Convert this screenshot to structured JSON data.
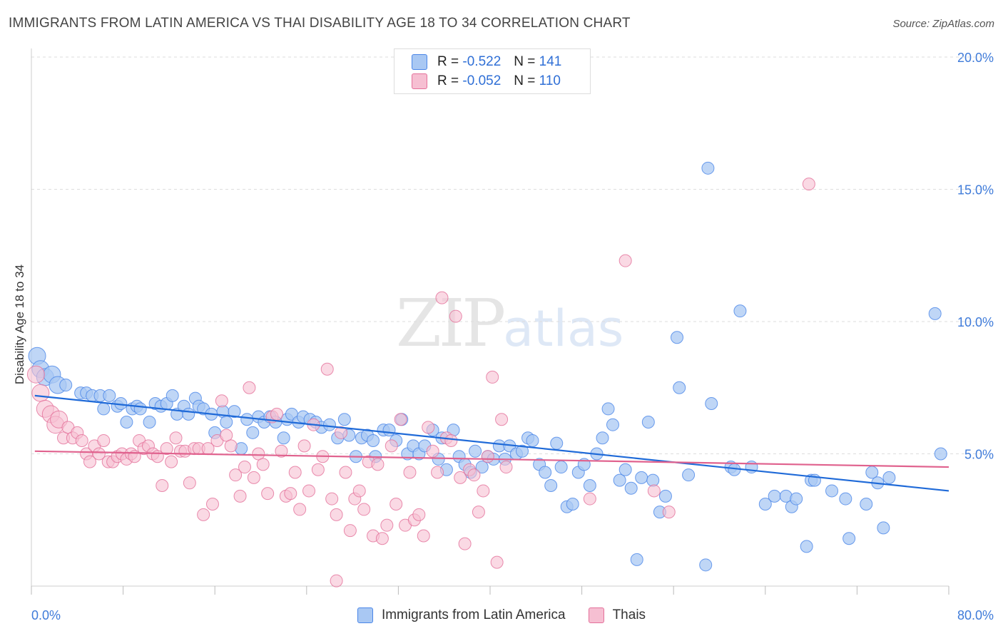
{
  "title": "IMMIGRANTS FROM LATIN AMERICA VS THAI DISABILITY AGE 18 TO 34 CORRELATION CHART",
  "source": "Source: ZipAtlas.com",
  "watermark": {
    "zip": "ZIP",
    "atlas": "atlas"
  },
  "legend": {
    "rows": [
      {
        "r_label": "R =",
        "r_value": "-0.522",
        "n_label": "N =",
        "n_value": "141"
      },
      {
        "r_label": "R =",
        "r_value": "-0.052",
        "n_label": "N =",
        "n_value": "110"
      }
    ]
  },
  "chart_data": {
    "type": "scatter",
    "title": "IMMIGRANTS FROM LATIN AMERICA VS THAI DISABILITY AGE 18 TO 34 CORRELATION CHART",
    "xlabel": "",
    "ylabel": "Disability Age 18 to 34",
    "xlim": [
      0,
      80
    ],
    "ylim": [
      0,
      20
    ],
    "x_tick_labels": [
      "0.0%",
      "80.0%"
    ],
    "y_tick_labels": [
      "5.0%",
      "10.0%",
      "15.0%",
      "20.0%"
    ],
    "y_ticks": [
      5,
      10,
      15,
      20
    ],
    "grid": true,
    "legend_position": "top-center",
    "colors": {
      "blue": "#4a86e8",
      "blue_fill": "#a9c8f3",
      "pink": "#e4709a",
      "pink_fill": "#f6bfd2"
    },
    "series": [
      {
        "name": "Immigrants from Latin America",
        "color": "#4a86e8",
        "trend": {
          "x": [
            0.3,
            80
          ],
          "y": [
            7.2,
            3.6
          ]
        },
        "points": [
          [
            0.5,
            8.7
          ],
          [
            0.8,
            8.2
          ],
          [
            1.2,
            7.9
          ],
          [
            1.8,
            8.0
          ],
          [
            2.3,
            7.6
          ],
          [
            3.0,
            7.6
          ],
          [
            4.3,
            7.3
          ],
          [
            4.8,
            7.3
          ],
          [
            5.3,
            7.2
          ],
          [
            6.0,
            7.2
          ],
          [
            6.3,
            6.7
          ],
          [
            6.8,
            7.2
          ],
          [
            7.5,
            6.8
          ],
          [
            7.8,
            6.9
          ],
          [
            8.3,
            6.2
          ],
          [
            8.8,
            6.7
          ],
          [
            9.2,
            6.8
          ],
          [
            9.5,
            6.7
          ],
          [
            10.3,
            6.2
          ],
          [
            10.8,
            6.9
          ],
          [
            11.3,
            6.8
          ],
          [
            11.8,
            6.9
          ],
          [
            12.3,
            7.2
          ],
          [
            12.7,
            6.5
          ],
          [
            13.3,
            6.8
          ],
          [
            13.7,
            6.5
          ],
          [
            14.3,
            7.1
          ],
          [
            14.6,
            6.8
          ],
          [
            15.0,
            6.7
          ],
          [
            15.7,
            6.5
          ],
          [
            16.0,
            5.8
          ],
          [
            16.7,
            6.6
          ],
          [
            17.0,
            6.2
          ],
          [
            17.7,
            6.6
          ],
          [
            18.3,
            5.2
          ],
          [
            18.8,
            6.3
          ],
          [
            19.3,
            5.8
          ],
          [
            19.8,
            6.4
          ],
          [
            20.3,
            6.2
          ],
          [
            20.8,
            6.4
          ],
          [
            21.3,
            6.2
          ],
          [
            22.0,
            5.6
          ],
          [
            22.3,
            6.3
          ],
          [
            22.7,
            6.5
          ],
          [
            23.3,
            6.2
          ],
          [
            23.7,
            6.4
          ],
          [
            24.3,
            6.3
          ],
          [
            24.8,
            6.2
          ],
          [
            25.3,
            6.0
          ],
          [
            26.0,
            6.1
          ],
          [
            26.7,
            5.6
          ],
          [
            27.3,
            6.3
          ],
          [
            27.7,
            5.7
          ],
          [
            28.3,
            4.9
          ],
          [
            28.8,
            5.6
          ],
          [
            29.3,
            5.7
          ],
          [
            29.8,
            5.5
          ],
          [
            30.0,
            4.9
          ],
          [
            30.7,
            5.9
          ],
          [
            31.2,
            5.9
          ],
          [
            31.8,
            5.5
          ],
          [
            32.3,
            6.3
          ],
          [
            32.8,
            5.0
          ],
          [
            33.3,
            5.3
          ],
          [
            33.8,
            5.0
          ],
          [
            34.3,
            5.3
          ],
          [
            35.0,
            5.9
          ],
          [
            35.5,
            4.8
          ],
          [
            35.8,
            5.6
          ],
          [
            36.2,
            4.4
          ],
          [
            36.8,
            5.9
          ],
          [
            37.3,
            4.9
          ],
          [
            37.8,
            4.6
          ],
          [
            38.3,
            4.3
          ],
          [
            38.7,
            5.1
          ],
          [
            39.3,
            4.5
          ],
          [
            39.8,
            4.9
          ],
          [
            40.3,
            4.8
          ],
          [
            40.8,
            5.3
          ],
          [
            41.3,
            4.8
          ],
          [
            41.7,
            5.3
          ],
          [
            42.3,
            5.0
          ],
          [
            42.8,
            5.1
          ],
          [
            43.3,
            5.6
          ],
          [
            43.7,
            5.5
          ],
          [
            44.3,
            4.6
          ],
          [
            44.8,
            4.3
          ],
          [
            45.3,
            3.8
          ],
          [
            45.8,
            5.4
          ],
          [
            46.2,
            4.5
          ],
          [
            46.7,
            3.0
          ],
          [
            47.2,
            3.1
          ],
          [
            47.7,
            4.3
          ],
          [
            48.2,
            4.6
          ],
          [
            48.7,
            3.8
          ],
          [
            49.3,
            5.0
          ],
          [
            49.8,
            5.6
          ],
          [
            50.3,
            6.7
          ],
          [
            50.7,
            6.1
          ],
          [
            51.3,
            4.0
          ],
          [
            51.8,
            4.4
          ],
          [
            52.3,
            3.7
          ],
          [
            52.8,
            1.0
          ],
          [
            53.2,
            4.1
          ],
          [
            53.8,
            6.2
          ],
          [
            54.2,
            4.0
          ],
          [
            54.8,
            2.8
          ],
          [
            55.3,
            3.4
          ],
          [
            56.3,
            9.4
          ],
          [
            56.5,
            7.5
          ],
          [
            57.3,
            4.2
          ],
          [
            58.8,
            0.8
          ],
          [
            59.0,
            15.8
          ],
          [
            59.3,
            6.9
          ],
          [
            61.0,
            4.5
          ],
          [
            61.3,
            4.4
          ],
          [
            62.8,
            4.5
          ],
          [
            61.8,
            10.4
          ],
          [
            64.0,
            3.1
          ],
          [
            64.8,
            3.4
          ],
          [
            65.8,
            3.4
          ],
          [
            66.3,
            3.0
          ],
          [
            66.7,
            3.3
          ],
          [
            67.6,
            1.5
          ],
          [
            68.0,
            4.0
          ],
          [
            68.3,
            4.0
          ],
          [
            69.8,
            3.6
          ],
          [
            71.0,
            3.3
          ],
          [
            71.3,
            1.8
          ],
          [
            72.8,
            3.1
          ],
          [
            73.3,
            4.3
          ],
          [
            73.8,
            3.9
          ],
          [
            74.3,
            2.2
          ],
          [
            74.8,
            4.1
          ],
          [
            78.8,
            10.3
          ],
          [
            79.3,
            5.0
          ]
        ]
      },
      {
        "name": "Thais",
        "color": "#e4709a",
        "trend": {
          "x": [
            0.3,
            80
          ],
          "y": [
            5.1,
            4.5
          ]
        },
        "points": [
          [
            0.4,
            8.0
          ],
          [
            0.8,
            7.3
          ],
          [
            1.2,
            6.7
          ],
          [
            1.7,
            6.5
          ],
          [
            2.1,
            6.1
          ],
          [
            2.4,
            6.3
          ],
          [
            2.8,
            5.6
          ],
          [
            3.2,
            6.0
          ],
          [
            3.6,
            5.6
          ],
          [
            4.0,
            5.8
          ],
          [
            4.4,
            5.5
          ],
          [
            4.8,
            5.0
          ],
          [
            5.1,
            4.7
          ],
          [
            5.5,
            5.3
          ],
          [
            5.9,
            5.0
          ],
          [
            6.3,
            5.5
          ],
          [
            6.7,
            4.7
          ],
          [
            7.1,
            4.7
          ],
          [
            7.5,
            4.9
          ],
          [
            7.9,
            5.0
          ],
          [
            8.3,
            4.8
          ],
          [
            8.7,
            5.0
          ],
          [
            9.0,
            4.9
          ],
          [
            9.4,
            5.5
          ],
          [
            9.8,
            5.2
          ],
          [
            10.2,
            5.3
          ],
          [
            10.6,
            5.0
          ],
          [
            11.0,
            4.9
          ],
          [
            11.4,
            3.8
          ],
          [
            11.8,
            5.2
          ],
          [
            12.2,
            4.7
          ],
          [
            12.6,
            5.6
          ],
          [
            13.0,
            5.1
          ],
          [
            13.4,
            5.1
          ],
          [
            13.8,
            3.9
          ],
          [
            14.2,
            5.2
          ],
          [
            14.6,
            5.2
          ],
          [
            15.0,
            2.7
          ],
          [
            15.4,
            5.2
          ],
          [
            15.8,
            3.1
          ],
          [
            16.2,
            5.5
          ],
          [
            16.6,
            7.0
          ],
          [
            17.0,
            5.7
          ],
          [
            17.4,
            5.3
          ],
          [
            17.8,
            4.2
          ],
          [
            18.2,
            3.4
          ],
          [
            18.6,
            4.5
          ],
          [
            19.0,
            7.5
          ],
          [
            19.4,
            4.1
          ],
          [
            19.8,
            5.0
          ],
          [
            20.2,
            4.6
          ],
          [
            20.6,
            3.5
          ],
          [
            21.0,
            6.4
          ],
          [
            21.4,
            6.5
          ],
          [
            21.8,
            5.1
          ],
          [
            22.2,
            3.4
          ],
          [
            22.6,
            3.5
          ],
          [
            23.0,
            4.3
          ],
          [
            23.4,
            2.9
          ],
          [
            23.8,
            5.3
          ],
          [
            24.2,
            3.6
          ],
          [
            24.6,
            6.1
          ],
          [
            25.0,
            4.4
          ],
          [
            25.4,
            4.9
          ],
          [
            25.8,
            8.2
          ],
          [
            26.2,
            3.3
          ],
          [
            26.6,
            2.7
          ],
          [
            27.0,
            5.8
          ],
          [
            27.4,
            4.3
          ],
          [
            27.8,
            2.1
          ],
          [
            28.2,
            3.3
          ],
          [
            28.6,
            3.6
          ],
          [
            29.0,
            2.9
          ],
          [
            29.4,
            4.7
          ],
          [
            29.8,
            1.9
          ],
          [
            30.2,
            4.6
          ],
          [
            30.6,
            1.8
          ],
          [
            31.0,
            2.3
          ],
          [
            31.4,
            5.3
          ],
          [
            31.8,
            3.1
          ],
          [
            32.2,
            6.3
          ],
          [
            32.6,
            2.3
          ],
          [
            33.0,
            4.3
          ],
          [
            33.4,
            2.5
          ],
          [
            33.8,
            2.7
          ],
          [
            34.2,
            1.9
          ],
          [
            34.6,
            6.0
          ],
          [
            35.0,
            5.1
          ],
          [
            35.4,
            4.3
          ],
          [
            35.8,
            10.9
          ],
          [
            36.2,
            5.6
          ],
          [
            36.6,
            5.5
          ],
          [
            37.0,
            10.2
          ],
          [
            37.4,
            4.1
          ],
          [
            37.8,
            1.6
          ],
          [
            38.2,
            4.4
          ],
          [
            38.6,
            4.2
          ],
          [
            39.0,
            2.8
          ],
          [
            39.4,
            3.6
          ],
          [
            39.8,
            4.9
          ],
          [
            40.2,
            7.9
          ],
          [
            40.6,
            0.9
          ],
          [
            41.0,
            6.3
          ],
          [
            41.4,
            4.5
          ],
          [
            48.7,
            3.3
          ],
          [
            51.8,
            12.3
          ],
          [
            54.3,
            3.6
          ],
          [
            55.6,
            2.8
          ],
          [
            67.8,
            15.2
          ],
          [
            26.6,
            0.2
          ]
        ]
      }
    ]
  },
  "bottom_legend": {
    "items": [
      {
        "label": "Immigrants from Latin America"
      },
      {
        "label": "Thais"
      }
    ]
  }
}
